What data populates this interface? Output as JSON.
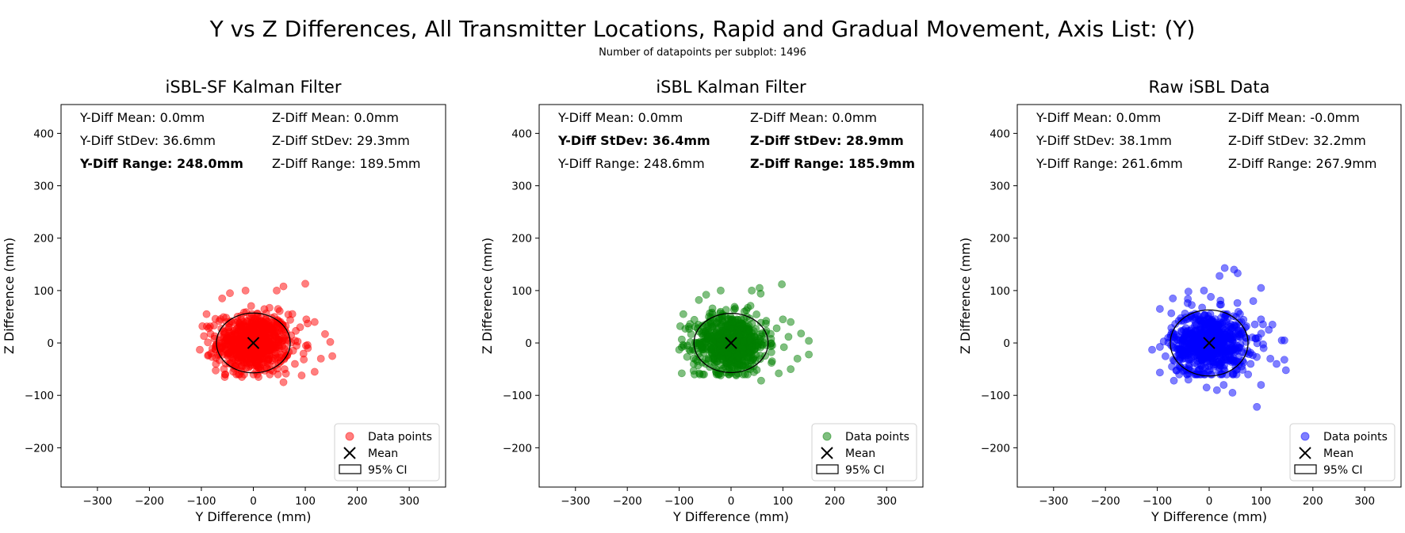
{
  "figure": {
    "title": "Y vs Z Differences, All Transmitter Locations, Rapid and Gradual Movement, Axis List: (Y)",
    "subtitle": "Number of datapoints per subplot: 1496"
  },
  "chart_data": [
    {
      "type": "scatter",
      "title": "iSBL-SF Kalman Filter",
      "xlabel": "Y Difference (mm)",
      "ylabel": "Z Difference (mm)",
      "xlim": [
        -370,
        370
      ],
      "ylim": [
        -275,
        455
      ],
      "xticks": [
        -300,
        -200,
        -100,
        0,
        100,
        200,
        300
      ],
      "yticks": [
        -200,
        -100,
        0,
        100,
        200,
        300,
        400
      ],
      "point_color": "#ff0000",
      "spread": {
        "y_sd": 36.6,
        "z_sd": 29.3
      },
      "mean": [
        0,
        0
      ],
      "ci95": {
        "width": 142,
        "height": 114
      },
      "stats": [
        {
          "text": "Y-Diff Mean: 0.0mm",
          "bold": false
        },
        {
          "text": "Z-Diff Mean: 0.0mm",
          "bold": false
        },
        {
          "text": "Y-Diff StDev: 36.6mm",
          "bold": false
        },
        {
          "text": "Z-Diff StDev: 29.3mm",
          "bold": false
        },
        {
          "text": "Y-Diff Range: 248.0mm",
          "bold": true
        },
        {
          "text": "Z-Diff Range: 189.5mm",
          "bold": false
        }
      ],
      "legend": [
        "Data points",
        "Mean",
        "95% CI"
      ],
      "legend_position": "bottom-right",
      "outliers": [
        [
          100,
          113
        ],
        [
          58,
          108
        ],
        [
          45,
          100
        ],
        [
          -15,
          100
        ],
        [
          -45,
          95
        ],
        [
          -60,
          85
        ],
        [
          -90,
          55
        ],
        [
          -98,
          32
        ],
        [
          -103,
          -13
        ],
        [
          -72,
          -40
        ],
        [
          -55,
          -65
        ],
        [
          -22,
          -65
        ],
        [
          10,
          -65
        ],
        [
          58,
          -75
        ],
        [
          93,
          -62
        ],
        [
          118,
          -55
        ],
        [
          130,
          -30
        ],
        [
          152,
          -25
        ],
        [
          148,
          2
        ],
        [
          138,
          17
        ],
        [
          118,
          40
        ],
        [
          102,
          45
        ],
        [
          90,
          30
        ],
        [
          105,
          -10
        ],
        [
          80,
          -40
        ],
        [
          60,
          -50
        ]
      ]
    },
    {
      "type": "scatter",
      "title": "iSBL Kalman Filter",
      "xlabel": "Y Difference (mm)",
      "ylabel": "Z Difference (mm)",
      "xlim": [
        -370,
        370
      ],
      "ylim": [
        -275,
        455
      ],
      "xticks": [
        -300,
        -200,
        -100,
        0,
        100,
        200,
        300
      ],
      "yticks": [
        -200,
        -100,
        0,
        100,
        200,
        300,
        400
      ],
      "point_color": "#008000",
      "spread": {
        "y_sd": 36.4,
        "z_sd": 28.9
      },
      "mean": [
        0,
        0
      ],
      "ci95": {
        "width": 143,
        "height": 113
      },
      "stats": [
        {
          "text": "Y-Diff Mean: 0.0mm",
          "bold": false
        },
        {
          "text": "Z-Diff Mean: 0.0mm",
          "bold": false
        },
        {
          "text": "Y-Diff StDev: 36.4mm",
          "bold": true
        },
        {
          "text": "Z-Diff StDev: 28.9mm",
          "bold": true
        },
        {
          "text": "Y-Diff Range: 248.6mm",
          "bold": false
        },
        {
          "text": "Z-Diff Range: 185.9mm",
          "bold": true
        }
      ],
      "legend": [
        "Data points",
        "Mean",
        "95% CI"
      ],
      "legend_position": "bottom-right",
      "outliers": [
        [
          98,
          112
        ],
        [
          55,
          105
        ],
        [
          40,
          100
        ],
        [
          -20,
          100
        ],
        [
          -48,
          92
        ],
        [
          -62,
          82
        ],
        [
          -92,
          55
        ],
        [
          -98,
          32
        ],
        [
          -100,
          -13
        ],
        [
          -72,
          -40
        ],
        [
          -52,
          -60
        ],
        [
          -20,
          -62
        ],
        [
          10,
          -62
        ],
        [
          58,
          -72
        ],
        [
          92,
          -58
        ],
        [
          115,
          -50
        ],
        [
          128,
          -30
        ],
        [
          150,
          -22
        ],
        [
          150,
          4
        ],
        [
          135,
          18
        ],
        [
          115,
          40
        ],
        [
          100,
          45
        ],
        [
          88,
          28
        ],
        [
          102,
          -8
        ],
        [
          78,
          -38
        ]
      ]
    },
    {
      "type": "scatter",
      "title": "Raw iSBL Data",
      "xlabel": "Y Difference (mm)",
      "ylabel": "Z Difference (mm)",
      "xlim": [
        -370,
        370
      ],
      "ylim": [
        -275,
        455
      ],
      "xticks": [
        -300,
        -200,
        -100,
        0,
        100,
        200,
        300
      ],
      "yticks": [
        -200,
        -100,
        0,
        100,
        200,
        300,
        400
      ],
      "point_color": "#0000ff",
      "spread": {
        "y_sd": 38.1,
        "z_sd": 32.2
      },
      "mean": [
        0,
        0
      ],
      "ci95": {
        "width": 150,
        "height": 126
      },
      "stats": [
        {
          "text": "Y-Diff Mean: 0.0mm",
          "bold": false
        },
        {
          "text": "Z-Diff Mean: -0.0mm",
          "bold": false
        },
        {
          "text": "Y-Diff StDev: 38.1mm",
          "bold": false
        },
        {
          "text": "Z-Diff StDev: 32.2mm",
          "bold": false
        },
        {
          "text": "Y-Diff Range: 261.6mm",
          "bold": false
        },
        {
          "text": "Z-Diff Range: 267.9mm",
          "bold": false
        }
      ],
      "legend": [
        "Data points",
        "Mean",
        "95% CI"
      ],
      "legend_position": "bottom-right",
      "outliers": [
        [
          30,
          143
        ],
        [
          48,
          140
        ],
        [
          55,
          133
        ],
        [
          20,
          128
        ],
        [
          100,
          105
        ],
        [
          -10,
          100
        ],
        [
          -40,
          98
        ],
        [
          -70,
          85
        ],
        [
          -95,
          65
        ],
        [
          -110,
          -13
        ],
        [
          -68,
          -72
        ],
        [
          -40,
          -70
        ],
        [
          -5,
          -85
        ],
        [
          15,
          -90
        ],
        [
          28,
          -80
        ],
        [
          45,
          -95
        ],
        [
          92,
          -122
        ],
        [
          100,
          -80
        ],
        [
          118,
          -30
        ],
        [
          130,
          -40
        ],
        [
          145,
          -32
        ],
        [
          148,
          -52
        ],
        [
          145,
          5
        ],
        [
          140,
          5
        ],
        [
          122,
          35
        ],
        [
          115,
          25
        ],
        [
          100,
          45
        ],
        [
          105,
          -10
        ],
        [
          80,
          -40
        ],
        [
          85,
          80
        ]
      ]
    }
  ]
}
